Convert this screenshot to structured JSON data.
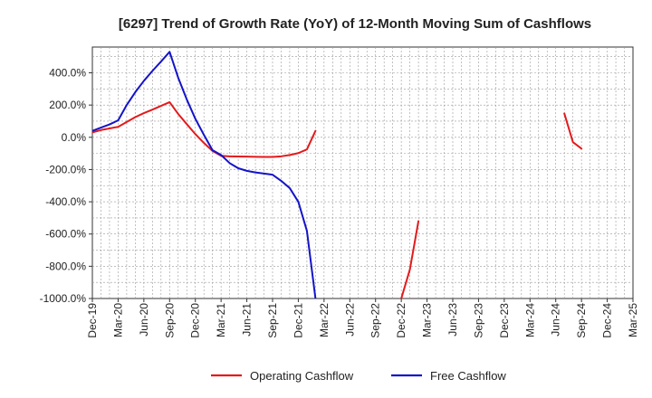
{
  "chart_data": {
    "type": "line",
    "title": "[6297]  Trend of Growth Rate (YoY) of 12-Month Moving Sum of Cashflows",
    "xlabel": "",
    "ylabel": "",
    "x_ticks": [
      "Dec-19",
      "Mar-20",
      "Jun-20",
      "Sep-20",
      "Dec-20",
      "Mar-21",
      "Jun-21",
      "Sep-21",
      "Dec-21",
      "Mar-22",
      "Jun-22",
      "Sep-22",
      "Dec-22",
      "Mar-23",
      "Jun-23",
      "Sep-23",
      "Dec-23",
      "Mar-24",
      "Jun-24",
      "Sep-24",
      "Dec-24",
      "Mar-25"
    ],
    "y_ticks": [
      {
        "value": 400,
        "label": "400.0%"
      },
      {
        "value": 200,
        "label": "200.0%"
      },
      {
        "value": 0,
        "label": "0.0%"
      },
      {
        "value": -200,
        "label": "-200.0%"
      },
      {
        "value": -400,
        "label": "-400.0%"
      },
      {
        "value": -600,
        "label": "-600.0%"
      },
      {
        "value": -800,
        "label": "-800.0%"
      },
      {
        "value": -1000,
        "label": "-1000.0%"
      }
    ],
    "ylim": [
      -1000,
      560
    ],
    "grid": true,
    "legend_position": "bottom",
    "series": [
      {
        "name": "Operating Cashflow",
        "color": "#e31a1c",
        "segments": [
          [
            {
              "x": "2019-12",
              "y": 30
            },
            {
              "x": "2020-01",
              "y": 45
            },
            {
              "x": "2020-02",
              "y": 55
            },
            {
              "x": "2020-03",
              "y": 65
            },
            {
              "x": "2020-04",
              "y": 95
            },
            {
              "x": "2020-05",
              "y": 125
            },
            {
              "x": "2020-06",
              "y": 150
            },
            {
              "x": "2020-07",
              "y": 172
            },
            {
              "x": "2020-08",
              "y": 195
            },
            {
              "x": "2020-09",
              "y": 218
            },
            {
              "x": "2020-10",
              "y": 145
            },
            {
              "x": "2020-11",
              "y": 82
            },
            {
              "x": "2020-12",
              "y": 20
            },
            {
              "x": "2021-01",
              "y": -35
            },
            {
              "x": "2021-02",
              "y": -85
            },
            {
              "x": "2021-03",
              "y": -115
            },
            {
              "x": "2021-04",
              "y": -118
            },
            {
              "x": "2021-05",
              "y": -119
            },
            {
              "x": "2021-06",
              "y": -120
            },
            {
              "x": "2021-07",
              "y": -121
            },
            {
              "x": "2021-08",
              "y": -122
            },
            {
              "x": "2021-09",
              "y": -122
            },
            {
              "x": "2021-10",
              "y": -118
            },
            {
              "x": "2021-11",
              "y": -110
            },
            {
              "x": "2021-12",
              "y": -98
            },
            {
              "x": "2022-01",
              "y": -75
            },
            {
              "x": "2022-02",
              "y": 40
            }
          ],
          [
            {
              "x": "2022-12",
              "y": -1000
            },
            {
              "x": "2023-01",
              "y": -820
            },
            {
              "x": "2023-02",
              "y": -520
            }
          ],
          [
            {
              "x": "2024-07",
              "y": 148
            },
            {
              "x": "2024-08",
              "y": -30
            },
            {
              "x": "2024-09",
              "y": -70
            }
          ]
        ]
      },
      {
        "name": "Free Cashflow",
        "color": "#1414c8",
        "segments": [
          [
            {
              "x": "2019-12",
              "y": 40
            },
            {
              "x": "2020-01",
              "y": 60
            },
            {
              "x": "2020-02",
              "y": 80
            },
            {
              "x": "2020-03",
              "y": 105
            },
            {
              "x": "2020-04",
              "y": 200
            },
            {
              "x": "2020-05",
              "y": 280
            },
            {
              "x": "2020-06",
              "y": 350
            },
            {
              "x": "2020-07",
              "y": 412
            },
            {
              "x": "2020-08",
              "y": 470
            },
            {
              "x": "2020-09",
              "y": 530
            },
            {
              "x": "2020-10",
              "y": 370
            },
            {
              "x": "2020-11",
              "y": 235
            },
            {
              "x": "2020-12",
              "y": 115
            },
            {
              "x": "2021-01",
              "y": 15
            },
            {
              "x": "2021-02",
              "y": -80
            },
            {
              "x": "2021-03",
              "y": -110
            },
            {
              "x": "2021-04",
              "y": -160
            },
            {
              "x": "2021-05",
              "y": -192
            },
            {
              "x": "2021-06",
              "y": -208
            },
            {
              "x": "2021-07",
              "y": -218
            },
            {
              "x": "2021-08",
              "y": -225
            },
            {
              "x": "2021-09",
              "y": -232
            },
            {
              "x": "2021-10",
              "y": -270
            },
            {
              "x": "2021-11",
              "y": -315
            },
            {
              "x": "2021-12",
              "y": -400
            },
            {
              "x": "2022-01",
              "y": -580
            },
            {
              "x": "2022-02",
              "y": -1000
            }
          ]
        ]
      }
    ]
  }
}
